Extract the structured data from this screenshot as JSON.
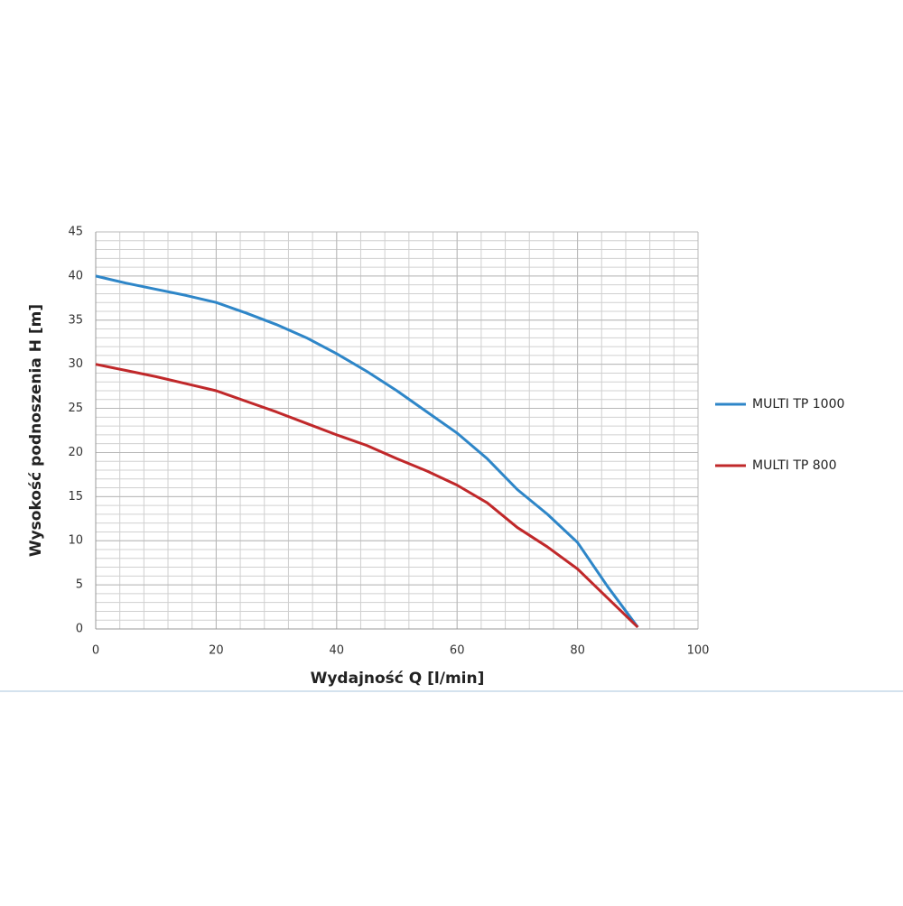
{
  "chart_data": {
    "type": "line",
    "xlabel": "Wydajność Q [l/min]",
    "ylabel": "Wysokość podnoszenia H [m]",
    "x": [
      0,
      5,
      10,
      15,
      20,
      25,
      30,
      35,
      40,
      45,
      50,
      55,
      60,
      65,
      70,
      75,
      80,
      85,
      90
    ],
    "series": [
      {
        "name": "MULTI TP 1000",
        "color": "#2e86c8",
        "values": [
          40,
          39.2,
          38.5,
          37.8,
          37,
          35.8,
          34.5,
          33,
          31.2,
          29.2,
          27,
          24.6,
          22.2,
          19.3,
          15.8,
          13,
          9.8,
          4.8,
          0.2
        ]
      },
      {
        "name": "MULTI TP 800",
        "color": "#c0282a",
        "values": [
          30,
          29.3,
          28.6,
          27.8,
          27,
          25.8,
          24.6,
          23.3,
          22,
          20.8,
          19.3,
          17.9,
          16.3,
          14.3,
          11.5,
          9.3,
          6.8,
          3.5,
          0.2
        ]
      }
    ],
    "xlim": [
      0,
      100
    ],
    "xticks": [
      0,
      20,
      40,
      60,
      80,
      100
    ],
    "ylim": [
      0,
      45
    ],
    "yticks": [
      0,
      5,
      10,
      15,
      20,
      25,
      30,
      35,
      40,
      45
    ],
    "grid": true,
    "minor_grid": {
      "x": 4,
      "y": 1
    },
    "legend": "right"
  }
}
